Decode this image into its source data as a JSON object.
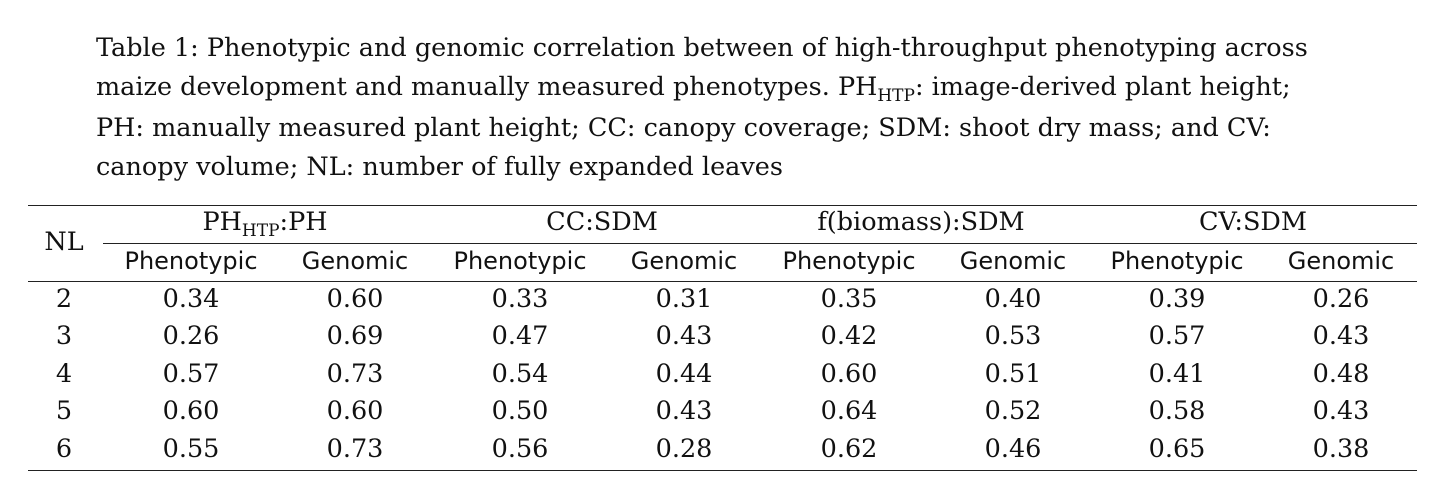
{
  "caption": {
    "line1": "Table 1: Phenotypic and genomic correlation between of high-throughput phenotyping across",
    "line2a": "maize development and manually measured phenotypes. PH",
    "line2sub": "HTP",
    "line2b": ": image-derived plant height;",
    "line3": "PH: manually measured plant height; CC: canopy coverage; SDM: shoot dry mass; and CV:",
    "line4": "canopy volume; NL: number of fully expanded leaves"
  },
  "table": {
    "row_header": "NL",
    "groups": [
      {
        "label": "PH",
        "sub": "HTP",
        "rest": ":PH"
      },
      {
        "label": "CC:SDM",
        "sub": "",
        "rest": ""
      },
      {
        "label": "f(biomass):SDM",
        "sub": "",
        "rest": ""
      },
      {
        "label": "CV:SDM",
        "sub": "",
        "rest": ""
      }
    ],
    "subheaders": [
      "Phenotypic",
      "Genomic",
      "Phenotypic",
      "Genomic",
      "Phenotypic",
      "Genomic",
      "Phenotypic",
      "Genomic"
    ],
    "rows": [
      {
        "nl": "2",
        "values": [
          "0.34",
          "0.60",
          "0.33",
          "0.31",
          "0.35",
          "0.40",
          "0.39",
          "0.26"
        ]
      },
      {
        "nl": "3",
        "values": [
          "0.26",
          "0.69",
          "0.47",
          "0.43",
          "0.42",
          "0.53",
          "0.57",
          "0.43"
        ]
      },
      {
        "nl": "4",
        "values": [
          "0.57",
          "0.73",
          "0.54",
          "0.44",
          "0.60",
          "0.51",
          "0.41",
          "0.48"
        ]
      },
      {
        "nl": "5",
        "values": [
          "0.60",
          "0.60",
          "0.50",
          "0.43",
          "0.64",
          "0.52",
          "0.58",
          "0.43"
        ]
      },
      {
        "nl": "6",
        "values": [
          "0.55",
          "0.73",
          "0.56",
          "0.28",
          "0.62",
          "0.46",
          "0.65",
          "0.38"
        ]
      }
    ]
  }
}
